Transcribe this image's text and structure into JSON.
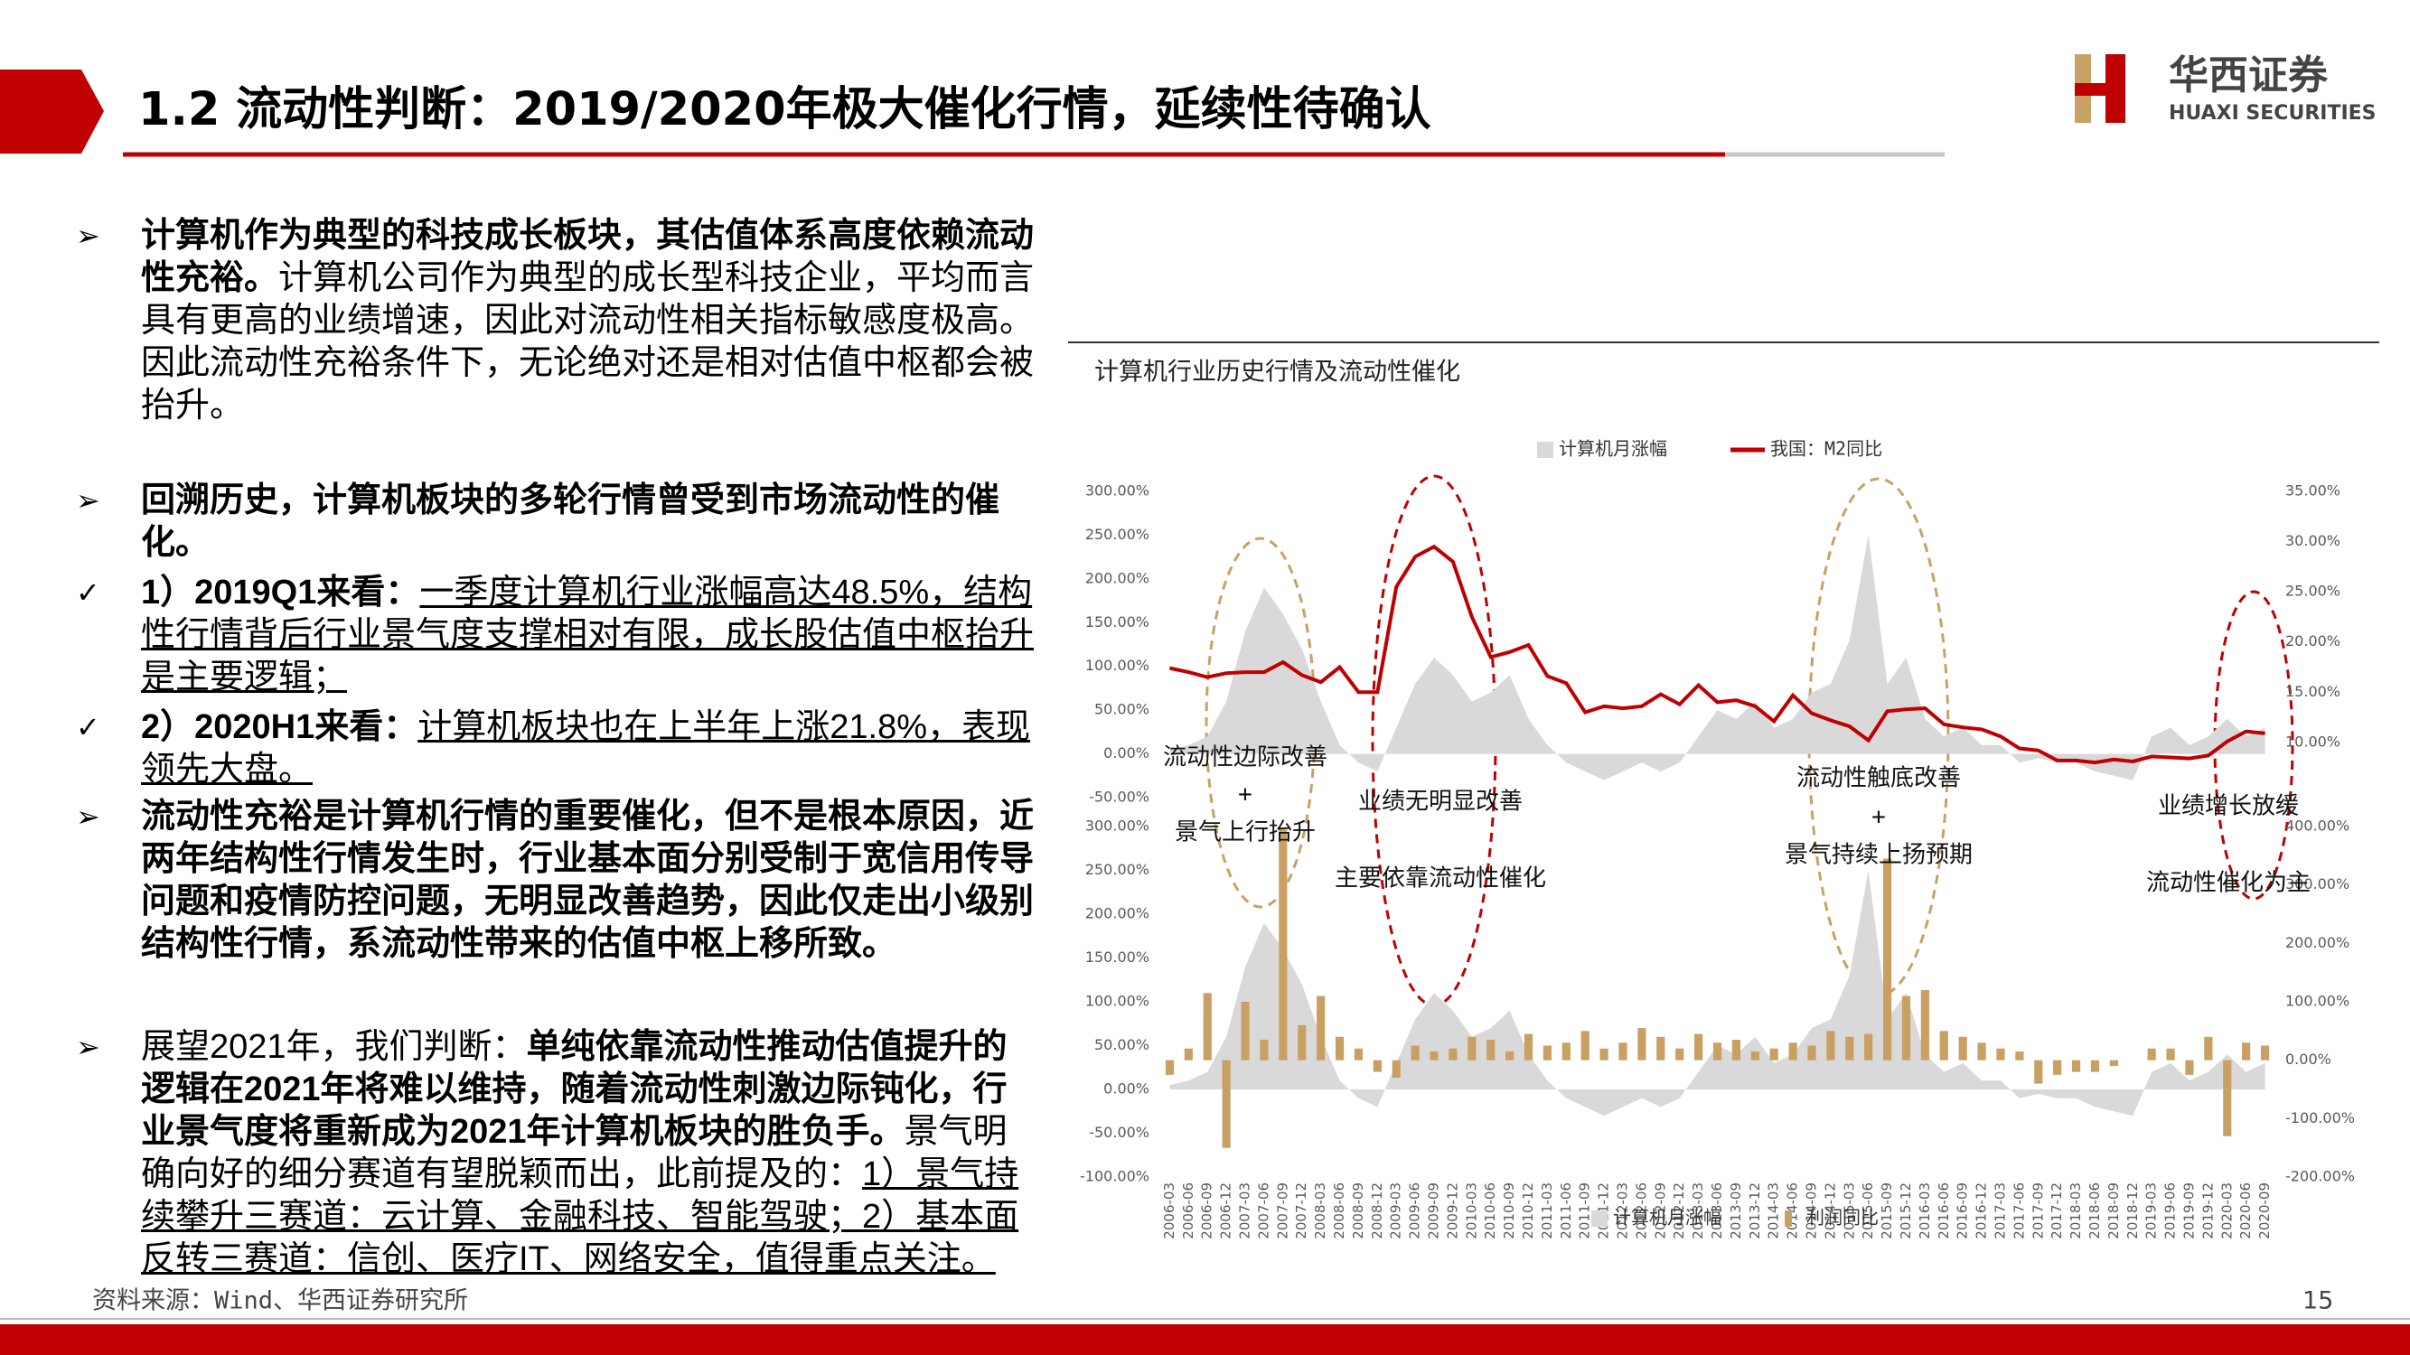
{
  "header": {
    "title": "1.2 流动性判断：2019/2020年极大催化行情，延续性待确认",
    "logo_cn": "华西证券",
    "logo_en": "HUAXI SECURITIES"
  },
  "paragraphs": [
    {
      "marker": "➢",
      "runs": [
        {
          "text": "计算机作为典型的科技成长板块，其估值体系高度依赖流动性充裕。",
          "style": "bold"
        },
        {
          "text": "计算机公司作为典型的成长型科技企业，平均而言具有更高的业绩增速，因此对流动性相关指标敏感度极高。因此流动性充裕条件下，无论绝对还是相对估值中枢都会被抬升。",
          "style": "normal"
        }
      ]
    },
    {
      "marker": "➢",
      "runs": [
        {
          "text": "回溯历史，计算机板块的多轮行情曾受到市场流动性的催化。",
          "style": "bold"
        }
      ]
    },
    {
      "marker": "✓",
      "runs": [
        {
          "text": "1）2019Q1来看：",
          "style": "bold"
        },
        {
          "text": "一季度计算机行业涨幅高达48.5%，结构性行情背后行业景气度支撑相对有限，成长股估值中枢抬升是主要逻辑；",
          "style": "underline"
        }
      ]
    },
    {
      "marker": "✓",
      "runs": [
        {
          "text": "2）2020H1来看：",
          "style": "bold"
        },
        {
          "text": "计算机板块也在上半年上涨21.8%，表现领先大盘。",
          "style": "underline"
        }
      ]
    },
    {
      "marker": "➢",
      "runs": [
        {
          "text": "流动性充裕是计算机行情的重要催化，但不是根本原因，近两年结构性行情发生时，行业基本面分别受制于宽信用传导问题和疫情防控问题，无明显改善趋势，因此仅走出小级别结构性行情，系流动性带来的估值中枢上移所致。",
          "style": "bold"
        }
      ]
    },
    {
      "marker": "➢",
      "runs": [
        {
          "text": "展望2021年，我们判断：",
          "style": "normal"
        },
        {
          "text": "单纯依靠流动性推动估值提升的逻辑在2021年将难以维持，随着流动性刺激边际钝化，行业景气度将重新成为2021年计算机板块的胜负手。",
          "style": "bold"
        },
        {
          "text": "景气明确向好的细分赛道有望脱颖而出，此前提及的：",
          "style": "normal"
        },
        {
          "text": "1）景气持续攀升三赛道：云计算、金融科技、智能驾驶；2）基本面反转三赛道：信创、医疗IT、网络安全，值得重点关注。",
          "style": "underline"
        }
      ]
    }
  ],
  "chart_title": "计算机行业历史行情及流动性催化",
  "annotations": [
    "流动性边际改善",
    "+",
    "景气上行抬升",
    "业绩无明显改善",
    "主要依靠流动性催化",
    "流动性触底改善",
    "+",
    "景气持续上扬预期",
    "业绩增长放缓",
    "流动性催化为主"
  ],
  "source": "资料来源：Wind、华西证券研究所",
  "page_number": "15",
  "chart_data": [
    {
      "type": "combo",
      "legend": "top",
      "ylim": [
        -50,
        300
      ],
      "yticks": [
        {
          "value": 300,
          "label": "300.00%"
        },
        {
          "value": 250,
          "label": "250.00%"
        },
        {
          "value": 200,
          "label": "200.00%"
        },
        {
          "value": 150,
          "label": "150.00%"
        },
        {
          "value": 100,
          "label": "100.00%"
        },
        {
          "value": 50,
          "label": "50.00%"
        },
        {
          "value": 0,
          "label": "0.00%"
        },
        {
          "value": -50,
          "label": "-50.00%"
        }
      ],
      "y2lim": [
        4.5,
        35
      ],
      "y2ticks": [
        {
          "value": 35,
          "label": "35.00%"
        },
        {
          "value": 30,
          "label": "30.00%"
        },
        {
          "value": 25,
          "label": "25.00%"
        },
        {
          "value": 20,
          "label": "20.00%"
        },
        {
          "value": 15,
          "label": "15.00%"
        },
        {
          "value": 10,
          "label": "10.00%"
        }
      ],
      "series": [
        {
          "name": "计算机月涨幅",
          "type": "area",
          "color": "#d9d9d9",
          "values": [
            5,
            10,
            20,
            60,
            140,
            190,
            160,
            120,
            60,
            10,
            -10,
            -20,
            30,
            80,
            110,
            90,
            60,
            70,
            90,
            40,
            10,
            -10,
            -20,
            -30,
            -20,
            -10,
            -20,
            -10,
            20,
            50,
            40,
            60,
            30,
            40,
            70,
            80,
            130,
            250,
            80,
            110,
            40,
            20,
            30,
            10,
            10,
            -10,
            -5,
            -10,
            -10,
            -20,
            -25,
            -30,
            20,
            30,
            10,
            20,
            40,
            20,
            30
          ]
        },
        {
          "name": "我国：M2同比",
          "type": "line",
          "axis": "y2",
          "color": "#c00000",
          "values": [
            17.4,
            17,
            16.5,
            16.9,
            17,
            17,
            18,
            16.7,
            16,
            17.5,
            15,
            15,
            25.5,
            28.5,
            29.5,
            28,
            22.5,
            18.5,
            19,
            19.7,
            16.6,
            15.9,
            13,
            13.6,
            13.4,
            13.6,
            14.8,
            13.8,
            15.7,
            14,
            14.2,
            13.6,
            12.1,
            14.7,
            12.9,
            12.2,
            11.6,
            10.2,
            13.1,
            13.3,
            13.4,
            11.8,
            11.5,
            11.3,
            10.6,
            9.4,
            9.2,
            8.2,
            8.2,
            8,
            8.3,
            8.1,
            8.6,
            8.5,
            8.4,
            8.7,
            10.1,
            11.1,
            10.9
          ]
        }
      ]
    },
    {
      "type": "combo",
      "legend": "bottom",
      "categories": [
        "2006-03",
        "2006-06",
        "2006-09",
        "2006-12",
        "2007-03",
        "2007-06",
        "2007-09",
        "2007-12",
        "2008-03",
        "2008-06",
        "2008-09",
        "2008-12",
        "2009-03",
        "2009-06",
        "2009-09",
        "2009-12",
        "2010-03",
        "2010-06",
        "2010-09",
        "2010-12",
        "2011-03",
        "2011-06",
        "2011-09",
        "2011-12",
        "2012-03",
        "2012-06",
        "2012-09",
        "2012-12",
        "2013-03",
        "2013-06",
        "2013-09",
        "2013-12",
        "2014-03",
        "2014-06",
        "2014-09",
        "2014-12",
        "2015-03",
        "2015-06",
        "2015-09",
        "2015-12",
        "2016-03",
        "2016-06",
        "2016-09",
        "2016-12",
        "2017-03",
        "2017-06",
        "2017-09",
        "2017-12",
        "2018-03",
        "2018-06",
        "2018-09",
        "2018-12",
        "2019-03",
        "2019-06",
        "2019-09",
        "2019-12",
        "2020-03",
        "2020-06",
        "2020-09"
      ],
      "ylim": [
        -100,
        300
      ],
      "yticks": [
        {
          "value": 300,
          "label": "300.00%"
        },
        {
          "value": 250,
          "label": "250.00%"
        },
        {
          "value": 200,
          "label": "200.00%"
        },
        {
          "value": 150,
          "label": "150.00%"
        },
        {
          "value": 100,
          "label": "100.00%"
        },
        {
          "value": 50,
          "label": "50.00%"
        },
        {
          "value": 0,
          "label": "0.00%"
        },
        {
          "value": -50,
          "label": "-50.00%"
        },
        {
          "value": -100,
          "label": "-100.00%"
        }
      ],
      "y2lim": [
        -200,
        400
      ],
      "y2ticks": [
        {
          "value": 400,
          "label": "400.00%"
        },
        {
          "value": 300,
          "label": "300.00%"
        },
        {
          "value": 200,
          "label": "200.00%"
        },
        {
          "value": 100,
          "label": "100.00%"
        },
        {
          "value": 0,
          "label": "0.00%"
        },
        {
          "value": -100,
          "label": "-100.00%"
        },
        {
          "value": -200,
          "label": "-200.00%"
        }
      ],
      "series": [
        {
          "name": "计算机月涨幅",
          "type": "area",
          "color": "#d9d9d9",
          "values": [
            5,
            10,
            20,
            60,
            140,
            190,
            160,
            120,
            60,
            10,
            -10,
            -20,
            30,
            80,
            110,
            90,
            60,
            70,
            90,
            40,
            10,
            -10,
            -20,
            -30,
            -20,
            -10,
            -20,
            -10,
            20,
            50,
            40,
            60,
            30,
            40,
            70,
            80,
            130,
            250,
            80,
            110,
            40,
            20,
            30,
            10,
            10,
            -10,
            -5,
            -10,
            -10,
            -20,
            -25,
            -30,
            20,
            30,
            10,
            20,
            40,
            20,
            30
          ]
        },
        {
          "name": "利润同比",
          "type": "bar",
          "axis": "y2",
          "color": "#c9a063",
          "values": [
            -25,
            20,
            115,
            -150,
            100,
            35,
            395,
            60,
            110,
            40,
            20,
            -20,
            -30,
            25,
            15,
            20,
            40,
            35,
            15,
            45,
            25,
            30,
            50,
            20,
            30,
            55,
            40,
            20,
            45,
            30,
            35,
            15,
            20,
            30,
            25,
            50,
            40,
            45,
            345,
            110,
            120,
            50,
            40,
            30,
            20,
            15,
            -40,
            -25,
            -20,
            -20,
            -10,
            0,
            20,
            20,
            -25,
            40,
            -130,
            30,
            25
          ]
        }
      ]
    }
  ]
}
